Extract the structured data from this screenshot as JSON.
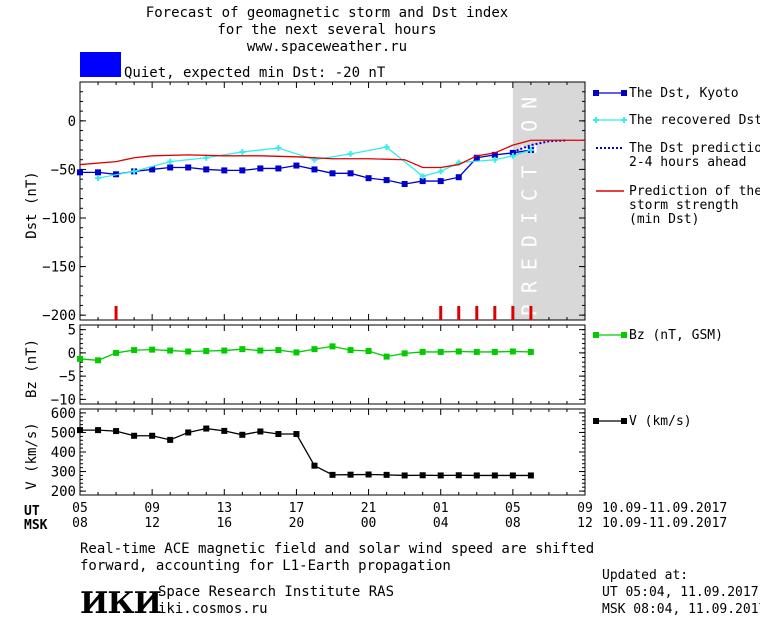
{
  "header": {
    "title_lines": [
      "Forecast of geomagnetic storm and Dst index",
      "for the next several hours",
      "www.spaceweather.ru"
    ],
    "status_color": "#0000ff",
    "status_text": "Quiet, expected min Dst: -20 nT"
  },
  "chart_data": [
    {
      "type": "line",
      "name": "dst-panel",
      "ylabel": "Dst (nT)",
      "ylim": [
        -205,
        40
      ],
      "yticks": [
        0,
        -50,
        -100,
        -150,
        -200
      ],
      "prediction_label": "PREDICTION",
      "x_units": "hours since 05 UT, 10.09.2017",
      "series": [
        {
          "name": "The Dst, Kyoto",
          "color": "#0000cc",
          "marker": "square",
          "x": [
            0,
            1,
            2,
            3,
            4,
            5,
            6,
            7,
            8,
            9,
            10,
            11,
            12,
            13,
            14,
            15,
            16,
            17,
            18,
            19,
            20,
            21,
            22,
            23,
            24,
            25
          ],
          "y": [
            -53,
            -53,
            -55,
            -52,
            -50,
            -48,
            -48,
            -50,
            -51,
            -51,
            -49,
            -49,
            -46,
            -50,
            -54,
            -54,
            -59,
            -61,
            -65,
            -62,
            -62,
            -58,
            -38,
            -35,
            -33,
            -30
          ]
        },
        {
          "name": "The recovered Dst",
          "color": "#33eeee",
          "marker": "plus",
          "x": [
            1,
            3,
            5,
            7,
            9,
            11,
            13,
            15,
            17,
            19,
            20,
            21,
            23,
            24,
            25
          ],
          "y": [
            -59,
            -52,
            -42,
            -38,
            -32,
            -28,
            -40,
            -34,
            -27,
            -57,
            -52,
            -43,
            -40,
            -36,
            -30
          ]
        },
        {
          "name": "The Dst prediction",
          "name_line2": "2-4 hours ahead",
          "color": "#0000cc",
          "dash": "dotted",
          "x": [
            24,
            25,
            26,
            27
          ],
          "y": [
            -32,
            -25,
            -21,
            -20
          ]
        },
        {
          "name": "Prediction of the",
          "name_line2": "storm strength",
          "name_line3": "(min Dst)",
          "color": "#dd0000",
          "x": [
            0,
            2,
            3,
            4,
            6,
            8,
            10,
            12,
            14,
            16,
            18,
            19,
            20,
            21,
            22,
            23,
            24,
            25,
            26,
            27,
            28
          ],
          "y": [
            -45,
            -42,
            -38,
            -36,
            -35,
            -36,
            -36,
            -37,
            -39,
            -39,
            -40,
            -48,
            -48,
            -45,
            -36,
            -33,
            -25,
            -20,
            -20,
            -20,
            -20
          ]
        }
      ],
      "storm_ticks_x": [
        2,
        20,
        21,
        22,
        23,
        24,
        25
      ]
    },
    {
      "type": "line",
      "name": "bz-panel",
      "ylabel": "Bz (nT)",
      "ylim": [
        -11,
        6
      ],
      "yticks": [
        5,
        0,
        -5,
        -10
      ],
      "series": [
        {
          "name": "Bz (nT, GSM)",
          "color": "#00cc00",
          "marker": "square",
          "x": [
            0,
            1,
            2,
            3,
            4,
            5,
            6,
            7,
            8,
            9,
            10,
            11,
            12,
            13,
            14,
            15,
            16,
            17,
            18,
            19,
            20,
            21,
            22,
            23,
            24,
            25
          ],
          "y": [
            -1.3,
            -1.6,
            0,
            0.6,
            0.7,
            0.5,
            0.3,
            0.4,
            0.5,
            0.8,
            0.5,
            0.6,
            0.1,
            0.8,
            1.4,
            0.6,
            0.4,
            -0.8,
            -0.1,
            0.2,
            0.2,
            0.3,
            0.2,
            0.2,
            0.3,
            0.2
          ]
        }
      ]
    },
    {
      "type": "line",
      "name": "v-panel",
      "ylabel": "V (km/s)",
      "ylim": [
        180,
        620
      ],
      "yticks": [
        600,
        500,
        400,
        300,
        200
      ],
      "series": [
        {
          "name": "V (km/s)",
          "color": "#000000",
          "marker": "square",
          "x": [
            0,
            1,
            2,
            3,
            4,
            5,
            6,
            7,
            8,
            9,
            10,
            11,
            12,
            13,
            14,
            15,
            16,
            17,
            18,
            19,
            20,
            21,
            22,
            23,
            24,
            25
          ],
          "y": [
            512,
            512,
            507,
            483,
            483,
            462,
            500,
            520,
            508,
            488,
            505,
            492,
            492,
            330,
            283,
            284,
            285,
            283,
            280,
            281,
            280,
            281,
            280,
            280,
            280,
            280
          ]
        }
      ]
    }
  ],
  "x_axis": {
    "ut_label": "UT",
    "msk_label": "MSK",
    "ut_ticks": [
      "05",
      "09",
      "13",
      "17",
      "21",
      "01",
      "05",
      "09"
    ],
    "msk_ticks": [
      "08",
      "12",
      "16",
      "20",
      "00",
      "04",
      "08",
      "12"
    ],
    "date_range": "10.09-11.09.2017"
  },
  "footer": {
    "note_lines": [
      "Real-time ACE magnetic field and solar wind speed are shifted",
      "forward, accounting for L1-Earth propagation"
    ],
    "logo_text": "ИКИ",
    "institute": "Space Research Institute RAS",
    "site": "iki.cosmos.ru",
    "updated_label": "Updated at:",
    "updated_ut": "UT   05:04, 11.09.2017",
    "updated_msk": "MSK 08:04, 11.09.2017"
  }
}
